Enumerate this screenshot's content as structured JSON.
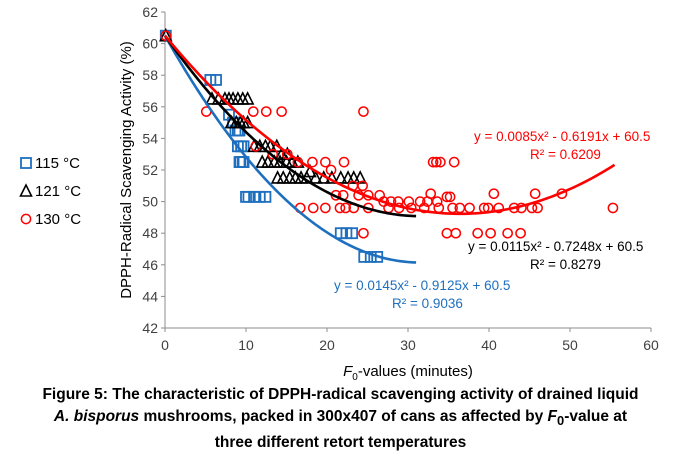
{
  "chart_data": {
    "type": "scatter",
    "xlabel": "F0-values (minutes)",
    "xlabel_main": "F",
    "xlabel_sub": "0",
    "xlabel_rest": "-values (minutes)",
    "ylabel": "DPPH-Radical Scavenging Activity (%)",
    "xlim": [
      0,
      60
    ],
    "ylim": [
      42,
      62
    ],
    "xticks": [
      "0",
      "10",
      "20",
      "30",
      "40",
      "50",
      "60"
    ],
    "yticks": [
      "42",
      "44",
      "46",
      "48",
      "50",
      "52",
      "54",
      "56",
      "58",
      "60",
      "62"
    ],
    "grid": false,
    "legend_position": "left",
    "series": [
      {
        "name": "115 °C",
        "marker": "square",
        "color": "#1f6fbf",
        "x": [
          0.1,
          5.6,
          6.3,
          7.9,
          8.4,
          8.7,
          9.0,
          9.2,
          9.4,
          9.7,
          9.2,
          9.7,
          9.0,
          9.3,
          9.6,
          10.0,
          10.3,
          11.0,
          11.7,
          12.4,
          21.7,
          22.4,
          23.1,
          24.6,
          25.4,
          26.2
        ],
        "y": [
          60.5,
          57.7,
          57.7,
          55.5,
          55.0,
          54.5,
          54.5,
          54.5,
          53.5,
          53.5,
          52.5,
          52.5,
          53.5,
          52.5,
          52.5,
          50.3,
          50.3,
          50.3,
          50.3,
          50.3,
          48.0,
          48.0,
          48.0,
          46.5,
          46.5,
          46.5
        ],
        "fit": {
          "a": 0.0145,
          "b": -0.9125,
          "c": 60.5,
          "x_start": 0,
          "x_end": 31
        },
        "equation": "y = 0.0145x² - 0.9125x + 60.5",
        "r2": "R² = 0.9036"
      },
      {
        "name": "121 °C",
        "marker": "triangle",
        "color": "#000000",
        "x": [
          0.1,
          5.8,
          6.6,
          7.4,
          7.9,
          8.4,
          9.0,
          9.6,
          10.2,
          8.2,
          8.8,
          9.3,
          9.7,
          10.2,
          11.0,
          11.7,
          12.4,
          13.0,
          13.8,
          14.4,
          15.1,
          12.0,
          12.7,
          13.5,
          14.2,
          15.0,
          15.7,
          16.4,
          13.9,
          14.6,
          15.4,
          16.1,
          16.8,
          17.5,
          18.6,
          19.6,
          20.6,
          21.7,
          22.6,
          23.3,
          24.1,
          17.9
        ],
        "y": [
          60.5,
          56.5,
          56.5,
          56.5,
          56.5,
          56.5,
          56.5,
          56.5,
          56.5,
          55.0,
          55.0,
          55.0,
          55.0,
          55.0,
          53.5,
          53.5,
          53.5,
          53.5,
          53.5,
          53.0,
          53.0,
          52.5,
          52.5,
          52.5,
          52.5,
          52.5,
          52.5,
          52.5,
          51.5,
          51.5,
          51.5,
          51.5,
          51.5,
          51.5,
          51.5,
          51.5,
          51.5,
          51.5,
          51.5,
          51.5,
          51.5,
          51.9
        ],
        "fit": {
          "a": 0.0115,
          "b": -0.7248,
          "c": 60.5,
          "x_start": 0,
          "x_end": 31
        },
        "equation": "y = 0.0115x² - 0.7248x + 60.5",
        "r2": "R² = 0.8279"
      },
      {
        "name": "130 °C",
        "marker": "circle",
        "color": "#ff0000",
        "x": [
          0.1,
          5.1,
          10.9,
          12.5,
          14.4,
          11.2,
          13.3,
          15.1,
          16.4,
          18.2,
          19.8,
          20.5,
          22.1,
          23.2,
          24.4,
          21.1,
          22.0,
          23.9,
          25.1,
          26.5,
          27.0,
          27.9,
          28.8,
          30.1,
          31.5,
          32.4,
          33.6,
          34.8,
          35.2,
          33.1,
          33.5,
          34.0,
          32.8,
          35.7,
          16.7,
          18.3,
          19.8,
          21.6,
          22.3,
          23.3,
          25.1,
          27.6,
          28.9,
          30.4,
          32.0,
          33.8,
          35.5,
          36.4,
          37.6,
          39.4,
          39.9,
          41.2,
          43.1,
          44.0,
          45.3,
          46.0,
          49.0,
          34.8,
          35.9,
          38.6,
          40.2,
          42.3,
          40.6,
          43.9,
          24.5,
          24.5,
          55.3,
          45.7
        ],
        "y": [
          60.5,
          55.7,
          55.7,
          55.7,
          55.7,
          53.5,
          53.0,
          53.0,
          52.5,
          52.5,
          52.5,
          52.0,
          52.5,
          51.0,
          51.0,
          50.4,
          50.4,
          50.4,
          50.4,
          50.4,
          50.0,
          50.0,
          50.0,
          50.0,
          50.0,
          50.0,
          50.0,
          50.3,
          50.3,
          52.5,
          52.5,
          52.5,
          50.5,
          52.5,
          49.6,
          49.6,
          49.6,
          49.6,
          49.6,
          49.6,
          49.6,
          49.6,
          49.6,
          49.6,
          49.6,
          49.6,
          49.6,
          49.6,
          49.6,
          49.6,
          49.6,
          49.6,
          49.6,
          49.6,
          49.6,
          49.6,
          50.5,
          48.0,
          48.0,
          48.0,
          48.0,
          48.0,
          50.5,
          48.0,
          48.0,
          55.7,
          49.6,
          50.5
        ],
        "fit": {
          "a": 0.0085,
          "b": -0.6191,
          "c": 60.5,
          "x_start": 0,
          "x_end": 55.5
        },
        "equation": "y = 0.0085x² - 0.6191x + 60.5",
        "r2": "R² = 0.6209"
      }
    ]
  },
  "caption": {
    "line1": "Figure 5: The characteristic of DPPH-radical scavenging activity of drained liquid",
    "line2_italic_a": "A. bisporus",
    "line2_mid": " mushrooms, packed in 300x407 of cans as affected by ",
    "line2_italic_b": "F",
    "line2_sub": "0",
    "line2_end": "-value at",
    "line3": "three different retort temperatures"
  }
}
